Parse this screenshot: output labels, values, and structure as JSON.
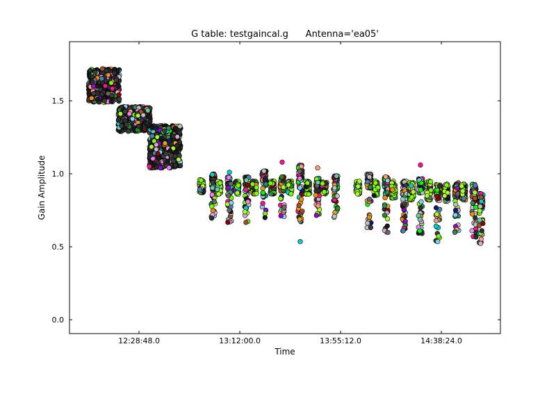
{
  "chart_data": {
    "type": "scatter",
    "title": "G table: testgaincal.g      Antenna='ea05'",
    "xlabel": "Time",
    "ylabel": "Gain Amplitude",
    "xlim": [
      "11:59:00",
      "15:03:42"
    ],
    "ylim": [
      -0.095,
      1.905
    ],
    "xticks": [
      "12:28:48.0",
      "13:12:00.0",
      "13:55:12.0",
      "14:38:24.0"
    ],
    "yticks": [
      "0.0",
      "0.5",
      "1.0",
      "1.5"
    ],
    "grid": false,
    "legend": "none",
    "marker_edge_color": "#000000",
    "series_colors": [
      "#1a1a1a",
      "#2f2f2f",
      "#3c3c3c",
      "#191970",
      "#8b0000",
      "#7fff00",
      "#adff2f",
      "#66cdaa",
      "#ff1493",
      "#9400d3",
      "#00ced1",
      "#ff8c00",
      "#daa520",
      "#228b22",
      "#00ff00",
      "#a0522d",
      "#ffa07a",
      "#87cefa",
      "#dda0dd",
      "#c0c0c0",
      "#696969",
      "#4682b4",
      "#ee82ee",
      "#2e8b57"
    ],
    "scans": [
      {
        "time_start": "12:07:06",
        "time_end": "12:20:30",
        "amp_min": 1.49,
        "amp_max": 1.72
      },
      {
        "time_start": "12:19:52",
        "time_end": "12:33:52",
        "amp_min": 1.29,
        "amp_max": 1.46
      },
      {
        "time_start": "12:33:16",
        "time_end": "12:46:40",
        "amp_min": 1.04,
        "amp_max": 1.33
      },
      {
        "time": "12:55:37",
        "amp_min": 0.87,
        "amp_max": 0.96
      },
      {
        "time": "13:00:40",
        "amp_min": 0.69,
        "amp_max": 1.0
      },
      {
        "time": "13:03:04",
        "amp_min": 0.86,
        "amp_max": 0.95
      },
      {
        "time": "13:07:32",
        "amp_min": 0.66,
        "amp_max": 0.98
      },
      {
        "time": "13:10:48",
        "amp_min": 0.86,
        "amp_max": 0.95
      },
      {
        "time": "13:14:58",
        "amp_min": 0.66,
        "amp_max": 0.98
      },
      {
        "time": "13:18:15",
        "amp_min": 0.86,
        "amp_max": 0.95
      },
      {
        "time": "13:22:25",
        "amp_min": 0.69,
        "amp_max": 1.02
      },
      {
        "time": "13:26:00",
        "amp_min": 0.86,
        "amp_max": 0.95
      },
      {
        "time": "13:30:10",
        "amp_min": 0.7,
        "amp_max": 0.98
      },
      {
        "time": "13:33:26",
        "amp_min": 0.86,
        "amp_max": 0.95
      },
      {
        "time": "13:37:55",
        "amp_min": 0.67,
        "amp_max": 1.06
      },
      {
        "time": "13:41:11",
        "amp_min": 0.86,
        "amp_max": 0.95
      },
      {
        "time": "13:45:22",
        "amp_min": 0.69,
        "amp_max": 0.97
      },
      {
        "time": "13:48:20",
        "amp_min": 0.86,
        "amp_max": 0.95
      },
      {
        "time": "13:53:06",
        "amp_min": 0.7,
        "amp_max": 0.99
      },
      {
        "time": "14:02:38",
        "amp_min": 0.86,
        "amp_max": 0.95
      },
      {
        "time": "14:07:24",
        "amp_min": 0.63,
        "amp_max": 1.0
      },
      {
        "time": "14:10:23",
        "amp_min": 0.85,
        "amp_max": 0.95
      },
      {
        "time": "14:14:51",
        "amp_min": 0.59,
        "amp_max": 0.98
      },
      {
        "time": "14:17:50",
        "amp_min": 0.83,
        "amp_max": 0.95
      },
      {
        "time": "14:22:36",
        "amp_min": 0.6,
        "amp_max": 0.95
      },
      {
        "time": "14:25:35",
        "amp_min": 0.82,
        "amp_max": 0.94
      },
      {
        "time": "14:29:27",
        "amp_min": 0.58,
        "amp_max": 0.97
      },
      {
        "time": "14:33:01",
        "amp_min": 0.82,
        "amp_max": 0.95
      },
      {
        "time": "14:36:54",
        "amp_min": 0.53,
        "amp_max": 0.93
      },
      {
        "time": "14:40:28",
        "amp_min": 0.81,
        "amp_max": 0.93
      },
      {
        "time": "14:44:56",
        "amp_min": 0.58,
        "amp_max": 0.94
      },
      {
        "time": "14:47:55",
        "amp_min": 0.82,
        "amp_max": 0.93
      },
      {
        "time": "14:52:23",
        "amp_min": 0.56,
        "amp_max": 0.93
      },
      {
        "time": "14:55:22",
        "amp_min": 0.51,
        "amp_max": 0.87
      }
    ],
    "outliers": [
      {
        "time": "13:07:32",
        "amp": 1.01,
        "color": "#00ced1"
      },
      {
        "time": "13:30:10",
        "amp": 1.08,
        "color": "#ff1493"
      },
      {
        "time": "13:37:55",
        "amp": 0.535,
        "color": "#00ced1"
      },
      {
        "time": "13:45:22",
        "amp": 1.04,
        "color": "#ffa07a"
      },
      {
        "time": "14:29:27",
        "amp": 1.06,
        "color": "#ff1493"
      },
      {
        "time": "12:33:16",
        "amp": 1.05,
        "color": "#ff1493"
      },
      {
        "time": "12:38:00",
        "amp": 1.04,
        "color": "#9400d3"
      }
    ]
  }
}
